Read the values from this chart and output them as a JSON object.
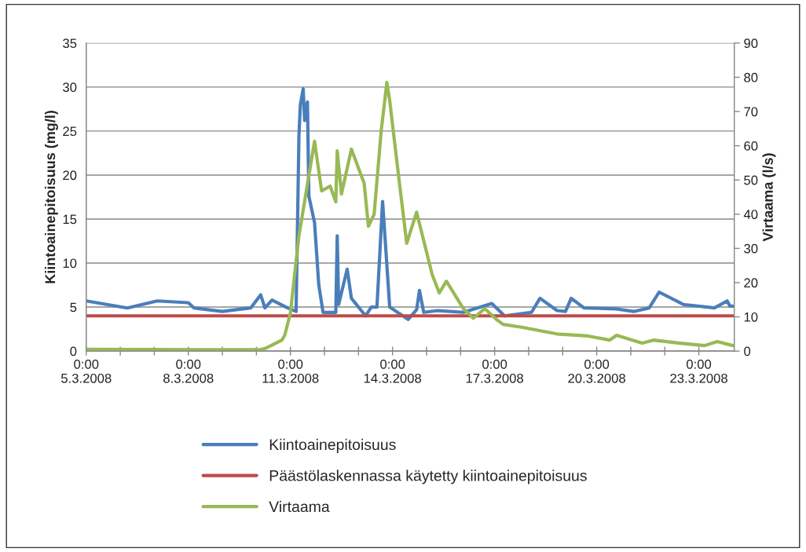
{
  "chart_data": {
    "type": "line",
    "ylabel": "Kiintoainepitoisuus (mg/l)",
    "y2label": "Virtaama (l/s)",
    "xlim": [
      "2008-03-05T00:00",
      "2008-03-24T01:00"
    ],
    "xticks": [
      {
        "value": "2008-03-05",
        "label": "0:00\n5.3.2008"
      },
      {
        "value": "2008-03-06",
        "label": null
      },
      {
        "value": "2008-03-07",
        "label": null
      },
      {
        "value": "2008-03-08",
        "label": "0:00\n8.3.2008"
      },
      {
        "value": "2008-03-09",
        "label": null
      },
      {
        "value": "2008-03-10",
        "label": null
      },
      {
        "value": "2008-03-11",
        "label": "0:00\n11.3.2008"
      },
      {
        "value": "2008-03-12",
        "label": null
      },
      {
        "value": "2008-03-13",
        "label": null
      },
      {
        "value": "2008-03-14",
        "label": "0:00\n14.3.2008"
      },
      {
        "value": "2008-03-15",
        "label": null
      },
      {
        "value": "2008-03-16",
        "label": null
      },
      {
        "value": "2008-03-17",
        "label": "0:00\n17.3.2008"
      },
      {
        "value": "2008-03-18",
        "label": null
      },
      {
        "value": "2008-03-19",
        "label": null
      },
      {
        "value": "2008-03-20",
        "label": "0:00\n20.3.2008"
      },
      {
        "value": "2008-03-21",
        "label": null
      },
      {
        "value": "2008-03-22",
        "label": null
      },
      {
        "value": "2008-03-23",
        "label": "0:00\n23.3.2008"
      }
    ],
    "ylim": [
      0,
      35
    ],
    "yticks": [
      0,
      5,
      10,
      15,
      20,
      25,
      30,
      35
    ],
    "y2lim": [
      0,
      90
    ],
    "y2ticks": [
      0,
      10,
      20,
      30,
      40,
      50,
      60,
      70,
      80,
      90
    ],
    "grid": "y",
    "legend": "bottom",
    "series": [
      {
        "name": "Kiintoainepitoisuus",
        "color": "#4a7ebb",
        "x": [
          "2008-03-05T00:00",
          "2008-03-06T05:00",
          "2008-03-07T02:00",
          "2008-03-08T00:00",
          "2008-03-08T04:00",
          "2008-03-09T00:00",
          "2008-03-09T20:00",
          "2008-03-10T03:00",
          "2008-03-10T06:00",
          "2008-03-10T11:00",
          "2008-03-10T22:00",
          "2008-03-11T04:00",
          "2008-03-11T06:00",
          "2008-03-11T07:00",
          "2008-03-11T09:00",
          "2008-03-11T10:00",
          "2008-03-11T12:00",
          "2008-03-11T13:00",
          "2008-03-11T17:00",
          "2008-03-11T20:00",
          "2008-03-11T23:00",
          "2008-03-12T08:00",
          "2008-03-12T09:00",
          "2008-03-12T10:00",
          "2008-03-12T16:00",
          "2008-03-12T19:00",
          "2008-03-13T05:00",
          "2008-03-13T09:00",
          "2008-03-13T13:00",
          "2008-03-13T17:00",
          "2008-03-13T22:00",
          "2008-03-14T11:00",
          "2008-03-14T17:00",
          "2008-03-14T19:00",
          "2008-03-14T22:00",
          "2008-03-15T08:00",
          "2008-03-16T02:00",
          "2008-03-16T22:00",
          "2008-03-17T07:00",
          "2008-03-18T02:00",
          "2008-03-18T08:00",
          "2008-03-18T20:00",
          "2008-03-19T02:00",
          "2008-03-19T06:00",
          "2008-03-19T15:00",
          "2008-03-20T13:00",
          "2008-03-21T02:00",
          "2008-03-21T13:00",
          "2008-03-21T20:00",
          "2008-03-22T13:00",
          "2008-03-23T11:00",
          "2008-03-23T20:00",
          "2008-03-23T22:00",
          "2008-03-24T00:00"
        ],
        "values": [
          5.7,
          4.9,
          5.7,
          5.5,
          4.9,
          4.5,
          4.9,
          6.4,
          4.9,
          5.8,
          4.9,
          4.5,
          24.5,
          28,
          29.8,
          26.2,
          28.3,
          17.6,
          14.6,
          7.5,
          4.4,
          4.4,
          13.1,
          5.3,
          9.3,
          6.0,
          4.0,
          5.0,
          5.0,
          17.0,
          5.0,
          3.6,
          4.7,
          6.9,
          4.4,
          4.6,
          4.4,
          5.4,
          4.0,
          4.4,
          6.0,
          4.6,
          4.5,
          6.0,
          4.9,
          4.8,
          4.5,
          4.9,
          6.7,
          5.3,
          4.9,
          5.7,
          5.1,
          5.1
        ]
      },
      {
        "name": "Päästölaskennassa käytetty kiintoainepitoisuus",
        "color": "#be4b48",
        "x": [
          "2008-03-05T00:00",
          "2008-03-24T00:00"
        ],
        "values": [
          4,
          4
        ]
      },
      {
        "name": "Virtaama",
        "color": "#98b954",
        "axis": "y2",
        "x": [
          "2008-03-05T00:00",
          "2008-03-10T03:00",
          "2008-03-10T07:00",
          "2008-03-10T18:00",
          "2008-03-10T20:00",
          "2008-03-11T00:00",
          "2008-03-11T06:00",
          "2008-03-11T17:00",
          "2008-03-11T22:00",
          "2008-03-12T04:00",
          "2008-03-12T08:00",
          "2008-03-12T09:00",
          "2008-03-12T12:00",
          "2008-03-12T19:00",
          "2008-03-13T04:00",
          "2008-03-13T07:00",
          "2008-03-13T11:00",
          "2008-03-13T16:00",
          "2008-03-13T20:00",
          "2008-03-13T22:00",
          "2008-03-14T04:00",
          "2008-03-14T10:00",
          "2008-03-14T17:00",
          "2008-03-15T04:00",
          "2008-03-15T09:00",
          "2008-03-15T14:00",
          "2008-03-16T02:00",
          "2008-03-16T09:00",
          "2008-03-16T17:00",
          "2008-03-17T02:00",
          "2008-03-17T06:00",
          "2008-03-17T20:00",
          "2008-03-18T20:00",
          "2008-03-19T18:00",
          "2008-03-20T09:00",
          "2008-03-20T14:00",
          "2008-03-21T08:00",
          "2008-03-21T16:00",
          "2008-03-22T11:00",
          "2008-03-23T04:00",
          "2008-03-23T13:00",
          "2008-03-24T00:00"
        ],
        "values": [
          0.5,
          0.4,
          0.9,
          3.2,
          4.6,
          11.2,
          33.7,
          61.3,
          46.8,
          48.2,
          43.6,
          58.5,
          45.9,
          59,
          49,
          36.5,
          39.9,
          64.3,
          78.5,
          73.2,
          52.1,
          31.5,
          40.6,
          22.3,
          17,
          20.4,
          12.4,
          9.6,
          12.4,
          9,
          7.8,
          6.9,
          5,
          4.4,
          3.2,
          4.6,
          2.3,
          3.2,
          2.3,
          1.6,
          2.8,
          1.6
        ]
      }
    ]
  }
}
